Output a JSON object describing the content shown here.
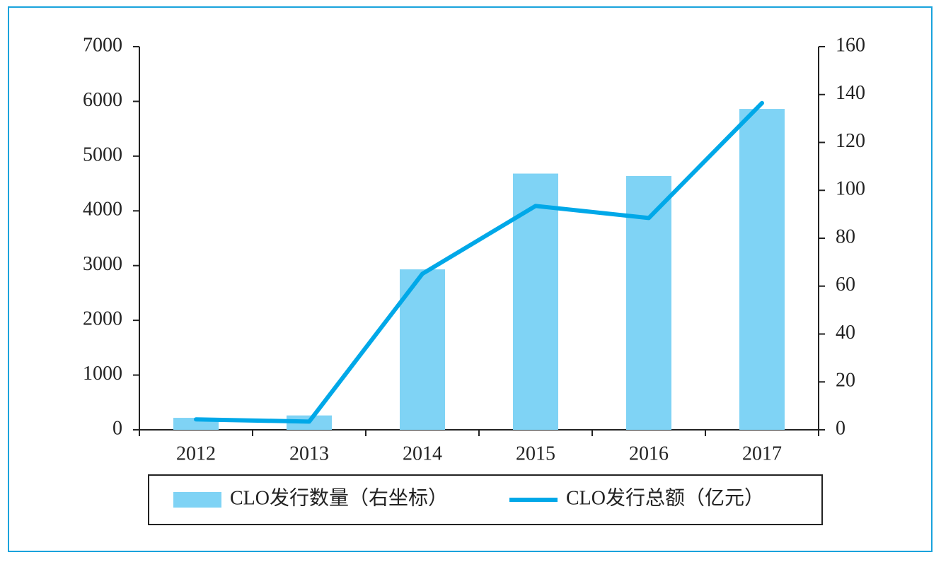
{
  "chart_data": {
    "type": "bar-line",
    "categories": [
      "2012",
      "2013",
      "2014",
      "2015",
      "2016",
      "2017"
    ],
    "series": [
      {
        "name": "CLO发行数量（右坐标）",
        "type": "bar",
        "axis": "y2",
        "color": "#7fd3f5",
        "values": [
          5,
          6,
          67,
          107,
          106,
          134
        ]
      },
      {
        "name": "CLO发行总额（亿元）",
        "type": "line",
        "axis": "y",
        "color": "#00a8e8",
        "values": [
          190,
          150,
          2850,
          4090,
          3870,
          5970
        ]
      }
    ],
    "ylim": [
      0,
      7000
    ],
    "yticks": [
      0,
      1000,
      2000,
      3000,
      4000,
      5000,
      6000,
      7000
    ],
    "y2lim": [
      0,
      160
    ],
    "y2ticks": [
      0,
      20,
      40,
      60,
      80,
      100,
      120,
      140,
      160
    ],
    "grid": false
  }
}
